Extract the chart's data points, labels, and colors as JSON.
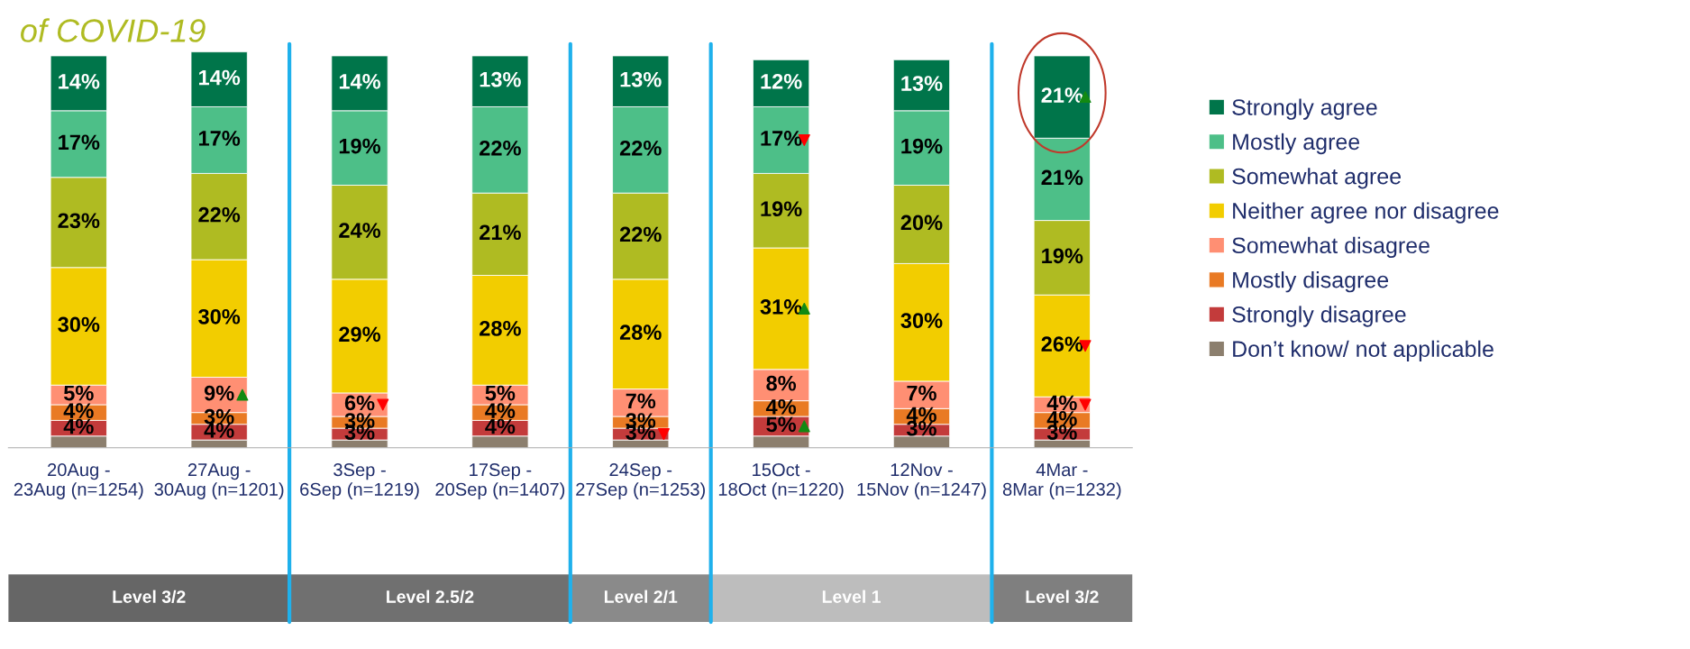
{
  "chart_data": {
    "type": "bar",
    "stacked": true,
    "title": "of COVID-19",
    "categories": [
      "20Aug -\n23Aug (n=1254)",
      "27Aug -\n30Aug (n=1201)",
      "3Sep -\n6Sep (n=1219)",
      "17Sep -\n20Sep (n=1407)",
      "24Sep -\n27Sep (n=1253)",
      "15Oct -\n18Oct (n=1220)",
      "12Nov -\n15Nov (n=1247)",
      "4Mar -\n8Mar (n=1232)"
    ],
    "series": [
      {
        "name": "Don’t know/ not applicable",
        "color": "#8c7f6e",
        "values": [
          3,
          2,
          2,
          3,
          2,
          3,
          3,
          2
        ],
        "value_labels": [
          null,
          null,
          null,
          null,
          null,
          null,
          null,
          null
        ]
      },
      {
        "name": "Strongly disagree",
        "color": "#c33b3b",
        "values": [
          4,
          4,
          3,
          4,
          3,
          5,
          3,
          3
        ],
        "value_labels": [
          "4%",
          "4%",
          "3%",
          "4%",
          "3%",
          "5%",
          "3%",
          "3%"
        ]
      },
      {
        "name": "Mostly disagree",
        "color": "#e97a24",
        "values": [
          4,
          3,
          3,
          4,
          3,
          4,
          4,
          4
        ],
        "value_labels": [
          "4%",
          "3%",
          "3%",
          "4%",
          "3%",
          "4%",
          "4%",
          "4%"
        ]
      },
      {
        "name": "Somewhat disagree",
        "color": "#ff8f73",
        "values": [
          5,
          9,
          6,
          5,
          7,
          8,
          7,
          4
        ],
        "value_labels": [
          "5%",
          "9%",
          "6%",
          "5%",
          "7%",
          "8%",
          "7%",
          "4%"
        ]
      },
      {
        "name": "Neither agree nor disagree",
        "color": "#f2cd00",
        "values": [
          30,
          30,
          29,
          28,
          28,
          31,
          30,
          26
        ],
        "value_labels": [
          "30%",
          "30%",
          "29%",
          "28%",
          "28%",
          "31%",
          "30%",
          "26%"
        ]
      },
      {
        "name": "Somewhat agree",
        "color": "#afbb22",
        "values": [
          23,
          22,
          24,
          21,
          22,
          19,
          20,
          19
        ],
        "value_labels": [
          "23%",
          "22%",
          "24%",
          "21%",
          "22%",
          "19%",
          "20%",
          "19%"
        ]
      },
      {
        "name": "Mostly agree",
        "color": "#4dbf88",
        "values": [
          17,
          17,
          19,
          22,
          22,
          17,
          19,
          21
        ],
        "value_labels": [
          "17%",
          "17%",
          "19%",
          "22%",
          "22%",
          "17%",
          "19%",
          "21%"
        ]
      },
      {
        "name": "Strongly agree",
        "color": "#00754a",
        "values": [
          14,
          14,
          14,
          13,
          13,
          12,
          13,
          21
        ],
        "value_labels": [
          "14%",
          "14%",
          "14%",
          "13%",
          "13%",
          "12%",
          "13%",
          "21%"
        ]
      }
    ],
    "legend": "right",
    "annotations": [
      "Level 3/2",
      "Level 2.5/2",
      "Level 2/1",
      "Level 1",
      "Level 3/2"
    ]
  }
}
